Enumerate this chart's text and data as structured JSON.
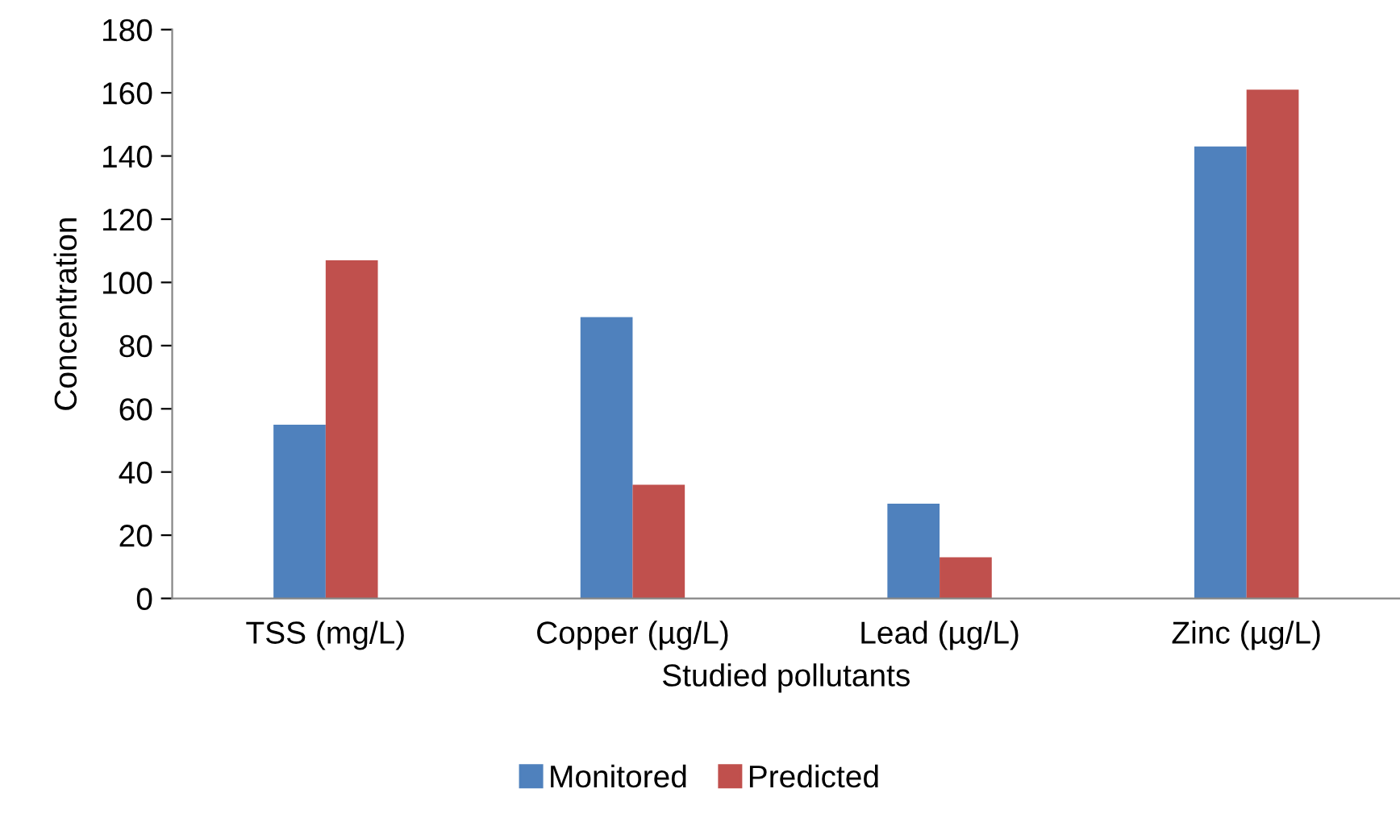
{
  "chart_data": {
    "type": "bar",
    "xlabel": "Studied pollutants",
    "ylabel": "Concentration",
    "categories": [
      "TSS (mg/L)",
      "Copper (µg/L)",
      "Lead (µg/L)",
      "Zinc (µg/L)"
    ],
    "series": [
      {
        "name": "Monitored",
        "color": "#4f81bd",
        "values": [
          55,
          89,
          30,
          143
        ]
      },
      {
        "name": "Predicted",
        "color": "#c0504d",
        "values": [
          107,
          36,
          13,
          161
        ]
      }
    ],
    "ylim": [
      0,
      180
    ],
    "yticks": [
      0,
      20,
      40,
      60,
      80,
      100,
      120,
      140,
      160,
      180
    ],
    "grid": false,
    "legend": "bottom"
  }
}
